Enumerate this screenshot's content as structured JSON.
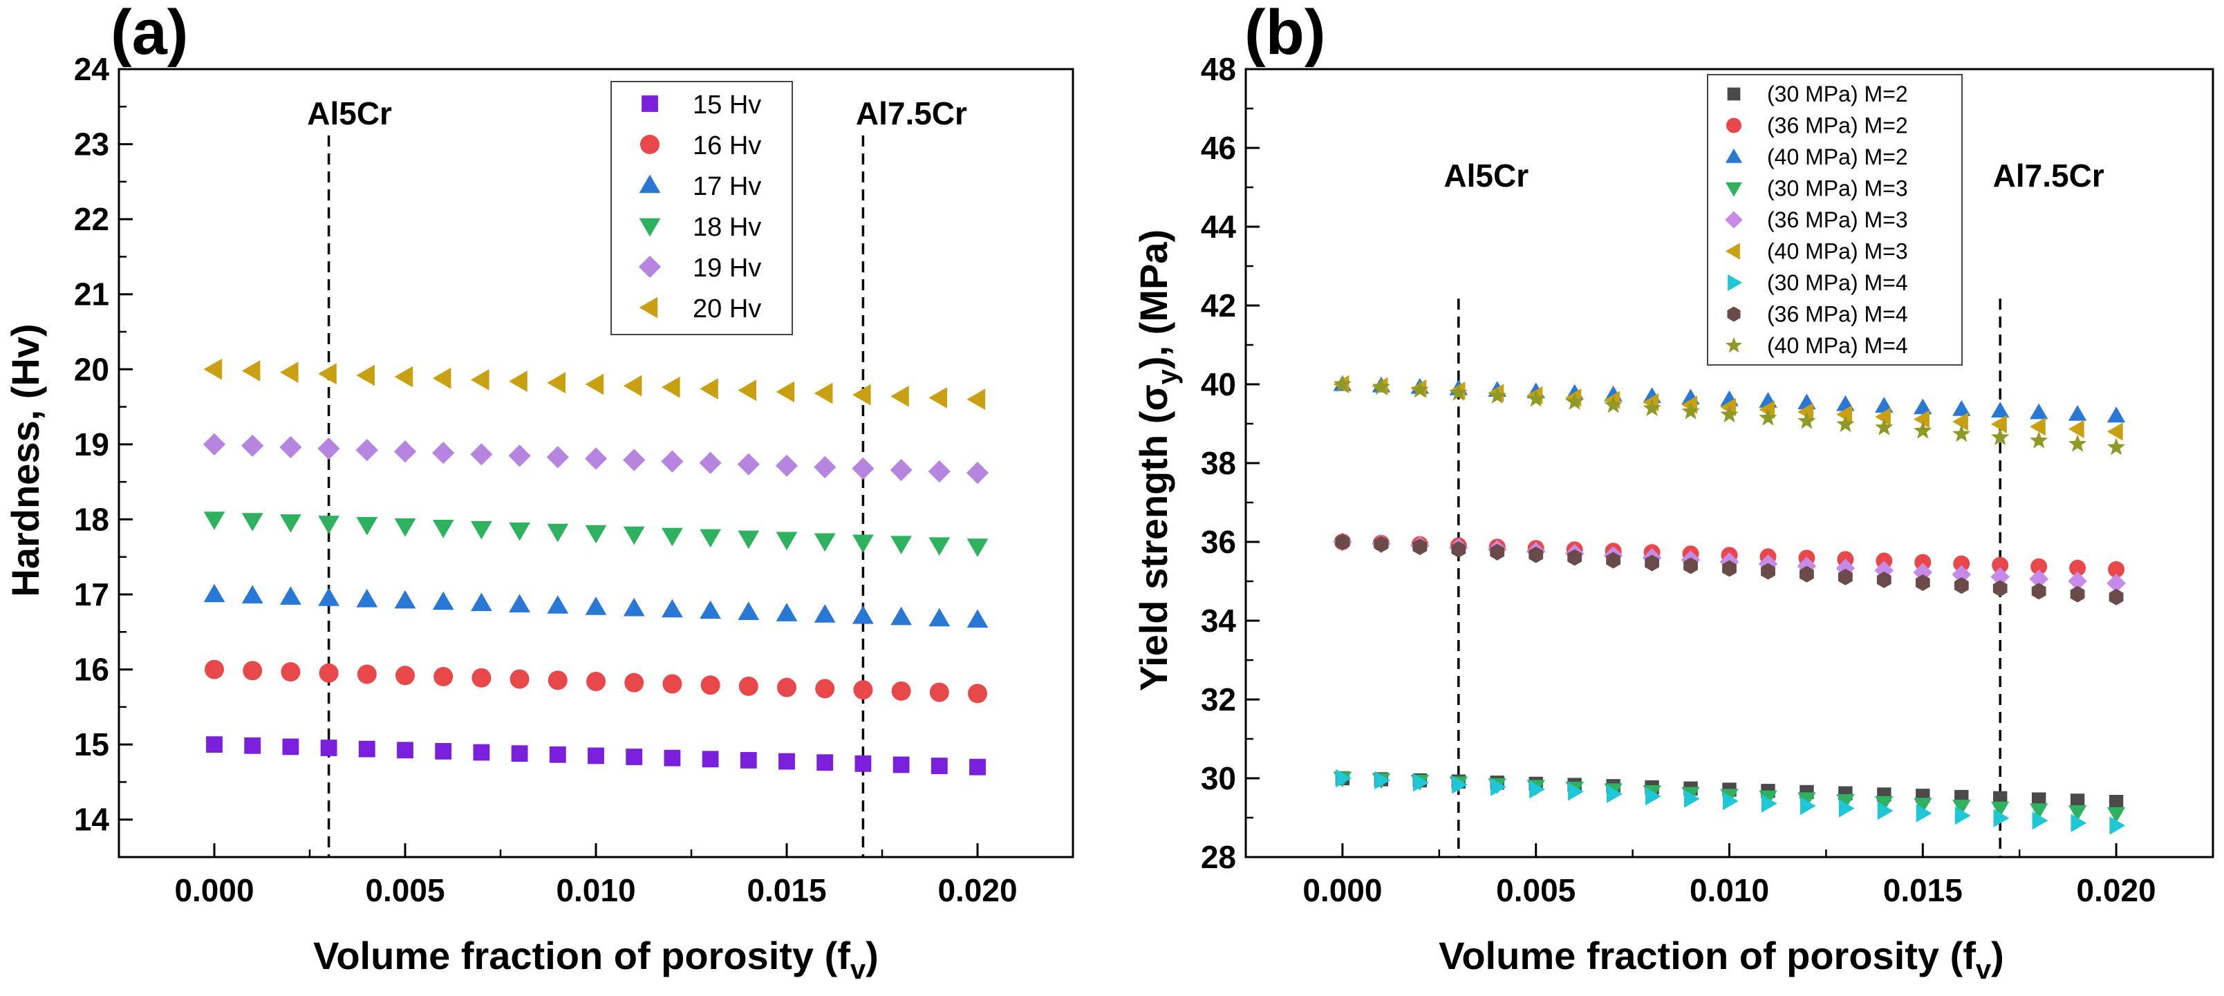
{
  "chart_data": [
    {
      "type": "scatter",
      "panel_label": "(a)",
      "title": "",
      "xlabel": "Volume fraction of porosity (f",
      "xlabel_sub": "v",
      "xlabel_end": ")",
      "ylabel": "Hardness, (Hv)",
      "xlim": [
        -0.0025,
        0.0225
      ],
      "ylim": [
        13.5,
        24
      ],
      "xticks": [
        "0.000",
        "0.005",
        "0.010",
        "0.015",
        "0.020"
      ],
      "yticks": [
        "14",
        "15",
        "16",
        "17",
        "18",
        "19",
        "20",
        "21",
        "22",
        "23",
        "24"
      ],
      "legend_position": "top-right",
      "annotations": [
        {
          "text": "Al5Cr",
          "x": 0.003
        },
        {
          "text": "Al7.5Cr",
          "x": 0.017
        }
      ],
      "series": [
        {
          "name": "15 Hv",
          "marker": "square",
          "color": "#7a1fdb",
          "start": 15.0,
          "end": 14.7
        },
        {
          "name": "16 Hv",
          "marker": "circle",
          "color": "#e8484a",
          "start": 16.0,
          "end": 15.68
        },
        {
          "name": "17 Hv",
          "marker": "triangle-up",
          "color": "#2a78d6",
          "start": 17.0,
          "end": 16.66
        },
        {
          "name": "18 Hv",
          "marker": "triangle-down",
          "color": "#2eb25f",
          "start": 18.0,
          "end": 17.64
        },
        {
          "name": "19 Hv",
          "marker": "diamond",
          "color": "#b685e0",
          "start": 19.0,
          "end": 18.62
        },
        {
          "name": "20 Hv",
          "marker": "triangle-left",
          "color": "#c9a012",
          "start": 20.0,
          "end": 19.6
        }
      ]
    },
    {
      "type": "scatter",
      "panel_label": "(b)",
      "title": "",
      "xlabel": "Volume fraction of porosity (f",
      "xlabel_sub": "v",
      "xlabel_end": ")",
      "ylabel_pre": "Yield strength (σ",
      "ylabel_sub": "y",
      "ylabel_post": "), (MPa)",
      "xlim": [
        -0.0025,
        0.0225
      ],
      "ylim": [
        28,
        48
      ],
      "xticks": [
        "0.000",
        "0.005",
        "0.010",
        "0.015",
        "0.020"
      ],
      "yticks": [
        "28",
        "30",
        "32",
        "34",
        "36",
        "38",
        "40",
        "42",
        "44",
        "46",
        "48"
      ],
      "legend_position": "top-center",
      "annotations": [
        {
          "text": "Al5Cr",
          "x": 0.003
        },
        {
          "text": "Al7.5Cr",
          "x": 0.017
        }
      ],
      "series": [
        {
          "name": "(30 MPa) M=2",
          "marker": "square",
          "color": "#4a4a4a",
          "start": 30.0,
          "end": 29.4
        },
        {
          "name": "(36 MPa) M=2",
          "marker": "circle",
          "color": "#e8484a",
          "start": 36.0,
          "end": 35.3
        },
        {
          "name": "(40 MPa) M=2",
          "marker": "triangle-up",
          "color": "#2a78d6",
          "start": 40.0,
          "end": 39.2
        },
        {
          "name": "(30 MPa) M=3",
          "marker": "triangle-down",
          "color": "#2eb25f",
          "start": 30.0,
          "end": 29.1
        },
        {
          "name": "(36 MPa) M=3",
          "marker": "diamond",
          "color": "#c68be8",
          "start": 36.0,
          "end": 34.95
        },
        {
          "name": "(40 MPa) M=3",
          "marker": "triangle-left",
          "color": "#c9a012",
          "start": 40.0,
          "end": 38.8
        },
        {
          "name": "(30 MPa) M=4",
          "marker": "triangle-right",
          "color": "#1fc6d6",
          "start": 30.0,
          "end": 28.8
        },
        {
          "name": "(36 MPa) M=4",
          "marker": "hexagon",
          "color": "#6b4a4a",
          "start": 36.0,
          "end": 34.6
        },
        {
          "name": "(40 MPa) M=4",
          "marker": "star",
          "color": "#8f9a26",
          "start": 40.0,
          "end": 38.4
        }
      ]
    }
  ]
}
